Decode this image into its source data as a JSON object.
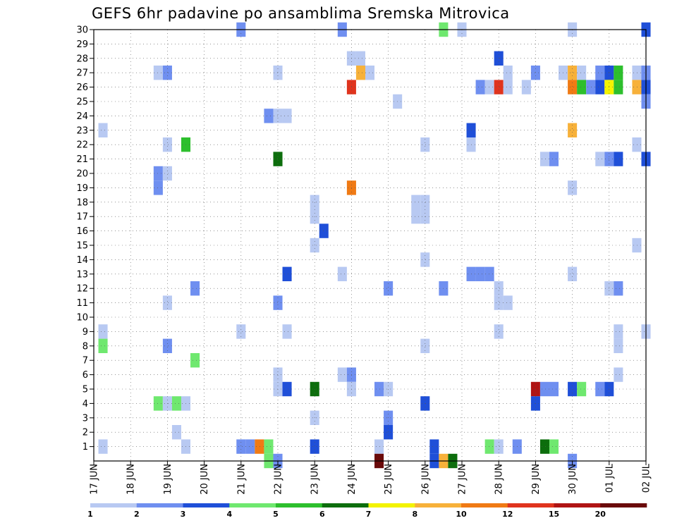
{
  "chart_data": {
    "type": "heatmap",
    "title": "GEFS 6hr padavine po ansamblima Sremska Mitrovica",
    "xlabel": "",
    "ylabel": "",
    "grid": true,
    "x_tick_labels": [
      "17 JUN",
      "18 JUN",
      "19 JUN",
      "20 JUN",
      "21 JUN",
      "22 JUN",
      "23 JUN",
      "24 JUN",
      "25 JUN",
      "26 JUN",
      "27 JUN",
      "28 JUN",
      "29 JUN",
      "30 JUN",
      "01 JUL",
      "02 JUL"
    ],
    "y_tick_labels": [
      "1",
      "2",
      "3",
      "4",
      "5",
      "6",
      "7",
      "8",
      "9",
      "10",
      "11",
      "12",
      "13",
      "14",
      "15",
      "16",
      "17",
      "18",
      "19",
      "20",
      "21",
      "22",
      "23",
      "24",
      "25",
      "26",
      "27",
      "28",
      "29",
      "30"
    ],
    "x_range_steps": [
      0,
      60
    ],
    "y_range": [
      0,
      30
    ],
    "colorbar": {
      "labels": [
        "1",
        "2",
        "3",
        "4",
        "5",
        "6",
        "7",
        "8",
        "10",
        "12",
        "15",
        "20"
      ],
      "colors": [
        "#b8c9f2",
        "#6f8ff0",
        "#1f4fd8",
        "#6fe86f",
        "#2dbf2d",
        "#0d6e0d",
        "#f3f300",
        "#f7b13a",
        "#f07a14",
        "#e0341e",
        "#b01414",
        "#6a0a0a"
      ]
    },
    "cells": [
      {
        "m": 30,
        "t": 16,
        "c": 2
      },
      {
        "m": 30,
        "t": 27,
        "c": 2
      },
      {
        "m": 30,
        "t": 38,
        "c": 4
      },
      {
        "m": 30,
        "t": 40,
        "c": 1
      },
      {
        "m": 30,
        "t": 52,
        "c": 1
      },
      {
        "m": 30,
        "t": 60,
        "c": 3
      },
      {
        "m": 28,
        "t": 28,
        "c": 1
      },
      {
        "m": 28,
        "t": 29,
        "c": 1
      },
      {
        "m": 28,
        "t": 44,
        "c": 3
      },
      {
        "m": 27,
        "t": 7,
        "c": 1
      },
      {
        "m": 27,
        "t": 8,
        "c": 2
      },
      {
        "m": 27,
        "t": 20,
        "c": 1
      },
      {
        "m": 27,
        "t": 29,
        "c": 8
      },
      {
        "m": 27,
        "t": 30,
        "c": 1
      },
      {
        "m": 27,
        "t": 45,
        "c": 1
      },
      {
        "m": 27,
        "t": 48,
        "c": 2
      },
      {
        "m": 27,
        "t": 51,
        "c": 1
      },
      {
        "m": 27,
        "t": 52,
        "c": 8
      },
      {
        "m": 27,
        "t": 53,
        "c": 1
      },
      {
        "m": 27,
        "t": 55,
        "c": 2
      },
      {
        "m": 27,
        "t": 56,
        "c": 3
      },
      {
        "m": 27,
        "t": 57,
        "c": 5
      },
      {
        "m": 27,
        "t": 59,
        "c": 1
      },
      {
        "m": 27,
        "t": 60,
        "c": 2
      },
      {
        "m": 26,
        "t": 28,
        "c": 10
      },
      {
        "m": 26,
        "t": 42,
        "c": 2
      },
      {
        "m": 26,
        "t": 43,
        "c": 1
      },
      {
        "m": 26,
        "t": 44,
        "c": 10
      },
      {
        "m": 26,
        "t": 45,
        "c": 1
      },
      {
        "m": 26,
        "t": 47,
        "c": 1
      },
      {
        "m": 26,
        "t": 52,
        "c": 9
      },
      {
        "m": 26,
        "t": 53,
        "c": 5
      },
      {
        "m": 26,
        "t": 54,
        "c": 2
      },
      {
        "m": 26,
        "t": 55,
        "c": 3
      },
      {
        "m": 26,
        "t": 56,
        "c": 7
      },
      {
        "m": 26,
        "t": 57,
        "c": 5
      },
      {
        "m": 26,
        "t": 59,
        "c": 8
      },
      {
        "m": 26,
        "t": 60,
        "c": 3
      },
      {
        "m": 25,
        "t": 33,
        "c": 1
      },
      {
        "m": 25,
        "t": 60,
        "c": 2
      },
      {
        "m": 24,
        "t": 19,
        "c": 2
      },
      {
        "m": 24,
        "t": 20,
        "c": 1
      },
      {
        "m": 24,
        "t": 21,
        "c": 1
      },
      {
        "m": 23,
        "t": 1,
        "c": 1
      },
      {
        "m": 23,
        "t": 41,
        "c": 3
      },
      {
        "m": 23,
        "t": 52,
        "c": 8
      },
      {
        "m": 22,
        "t": 8,
        "c": 1
      },
      {
        "m": 22,
        "t": 10,
        "c": 5
      },
      {
        "m": 22,
        "t": 36,
        "c": 1
      },
      {
        "m": 22,
        "t": 41,
        "c": 1
      },
      {
        "m": 22,
        "t": 59,
        "c": 1
      },
      {
        "m": 21,
        "t": 20,
        "c": 6
      },
      {
        "m": 21,
        "t": 49,
        "c": 1
      },
      {
        "m": 21,
        "t": 50,
        "c": 2
      },
      {
        "m": 21,
        "t": 55,
        "c": 1
      },
      {
        "m": 21,
        "t": 56,
        "c": 2
      },
      {
        "m": 21,
        "t": 57,
        "c": 3
      },
      {
        "m": 21,
        "t": 60,
        "c": 3
      },
      {
        "m": 20,
        "t": 7,
        "c": 2
      },
      {
        "m": 20,
        "t": 8,
        "c": 1
      },
      {
        "m": 19,
        "t": 7,
        "c": 2
      },
      {
        "m": 19,
        "t": 28,
        "c": 9
      },
      {
        "m": 19,
        "t": 52,
        "c": 1
      },
      {
        "m": 18,
        "t": 24,
        "c": 1
      },
      {
        "m": 18,
        "t": 35,
        "c": 1
      },
      {
        "m": 18,
        "t": 36,
        "c": 1
      },
      {
        "m": 17,
        "t": 24,
        "c": 1
      },
      {
        "m": 17,
        "t": 35,
        "c": 1
      },
      {
        "m": 17,
        "t": 36,
        "c": 1
      },
      {
        "m": 16,
        "t": 25,
        "c": 3
      },
      {
        "m": 15,
        "t": 24,
        "c": 1
      },
      {
        "m": 15,
        "t": 59,
        "c": 1
      },
      {
        "m": 14,
        "t": 36,
        "c": 1
      },
      {
        "m": 13,
        "t": 21,
        "c": 3
      },
      {
        "m": 13,
        "t": 27,
        "c": 1
      },
      {
        "m": 13,
        "t": 41,
        "c": 2
      },
      {
        "m": 13,
        "t": 42,
        "c": 2
      },
      {
        "m": 13,
        "t": 43,
        "c": 2
      },
      {
        "m": 13,
        "t": 52,
        "c": 1
      },
      {
        "m": 12,
        "t": 11,
        "c": 2
      },
      {
        "m": 12,
        "t": 32,
        "c": 2
      },
      {
        "m": 12,
        "t": 38,
        "c": 2
      },
      {
        "m": 12,
        "t": 44,
        "c": 1
      },
      {
        "m": 12,
        "t": 56,
        "c": 1
      },
      {
        "m": 12,
        "t": 57,
        "c": 2
      },
      {
        "m": 11,
        "t": 8,
        "c": 1
      },
      {
        "m": 11,
        "t": 20,
        "c": 2
      },
      {
        "m": 11,
        "t": 44,
        "c": 1
      },
      {
        "m": 11,
        "t": 45,
        "c": 1
      },
      {
        "m": 9,
        "t": 1,
        "c": 1
      },
      {
        "m": 9,
        "t": 16,
        "c": 1
      },
      {
        "m": 9,
        "t": 21,
        "c": 1
      },
      {
        "m": 9,
        "t": 44,
        "c": 1
      },
      {
        "m": 9,
        "t": 57,
        "c": 1
      },
      {
        "m": 9,
        "t": 60,
        "c": 1
      },
      {
        "m": 8,
        "t": 1,
        "c": 4
      },
      {
        "m": 8,
        "t": 8,
        "c": 2
      },
      {
        "m": 8,
        "t": 36,
        "c": 1
      },
      {
        "m": 8,
        "t": 57,
        "c": 1
      },
      {
        "m": 7,
        "t": 11,
        "c": 4
      },
      {
        "m": 6,
        "t": 20,
        "c": 1
      },
      {
        "m": 6,
        "t": 27,
        "c": 1
      },
      {
        "m": 6,
        "t": 28,
        "c": 2
      },
      {
        "m": 6,
        "t": 57,
        "c": 1
      },
      {
        "m": 5,
        "t": 20,
        "c": 1
      },
      {
        "m": 5,
        "t": 21,
        "c": 3
      },
      {
        "m": 5,
        "t": 24,
        "c": 6
      },
      {
        "m": 5,
        "t": 28,
        "c": 1
      },
      {
        "m": 5,
        "t": 31,
        "c": 2
      },
      {
        "m": 5,
        "t": 32,
        "c": 1
      },
      {
        "m": 5,
        "t": 48,
        "c": 11
      },
      {
        "m": 5,
        "t": 49,
        "c": 2
      },
      {
        "m": 5,
        "t": 50,
        "c": 2
      },
      {
        "m": 5,
        "t": 52,
        "c": 3
      },
      {
        "m": 5,
        "t": 53,
        "c": 4
      },
      {
        "m": 5,
        "t": 55,
        "c": 2
      },
      {
        "m": 5,
        "t": 56,
        "c": 3
      },
      {
        "m": 4,
        "t": 7,
        "c": 4
      },
      {
        "m": 4,
        "t": 8,
        "c": 1
      },
      {
        "m": 4,
        "t": 9,
        "c": 4
      },
      {
        "m": 4,
        "t": 10,
        "c": 1
      },
      {
        "m": 4,
        "t": 36,
        "c": 3
      },
      {
        "m": 4,
        "t": 48,
        "c": 3
      },
      {
        "m": 3,
        "t": 24,
        "c": 1
      },
      {
        "m": 3,
        "t": 32,
        "c": 2
      },
      {
        "m": 2,
        "t": 9,
        "c": 1
      },
      {
        "m": 2,
        "t": 32,
        "c": 3
      },
      {
        "m": 1,
        "t": 1,
        "c": 1
      },
      {
        "m": 1,
        "t": 10,
        "c": 1
      },
      {
        "m": 1,
        "t": 16,
        "c": 2
      },
      {
        "m": 1,
        "t": 17,
        "c": 2
      },
      {
        "m": 1,
        "t": 18,
        "c": 9
      },
      {
        "m": 1,
        "t": 19,
        "c": 4
      },
      {
        "m": 1,
        "t": 24,
        "c": 3
      },
      {
        "m": 1,
        "t": 31,
        "c": 1
      },
      {
        "m": 1,
        "t": 37,
        "c": 3
      },
      {
        "m": 1,
        "t": 43,
        "c": 4
      },
      {
        "m": 1,
        "t": 44,
        "c": 1
      },
      {
        "m": 1,
        "t": 46,
        "c": 2
      },
      {
        "m": 1,
        "t": 49,
        "c": 6
      },
      {
        "m": 1,
        "t": 50,
        "c": 4
      },
      {
        "m": 0,
        "t": 19,
        "c": 4
      },
      {
        "m": 0,
        "t": 20,
        "c": 2
      },
      {
        "m": 0,
        "t": 31,
        "c": 12
      },
      {
        "m": 0,
        "t": 37,
        "c": 3
      },
      {
        "m": 0,
        "t": 38,
        "c": 8
      },
      {
        "m": 0,
        "t": 39,
        "c": 6
      },
      {
        "m": 0,
        "t": 52,
        "c": 2
      }
    ]
  }
}
